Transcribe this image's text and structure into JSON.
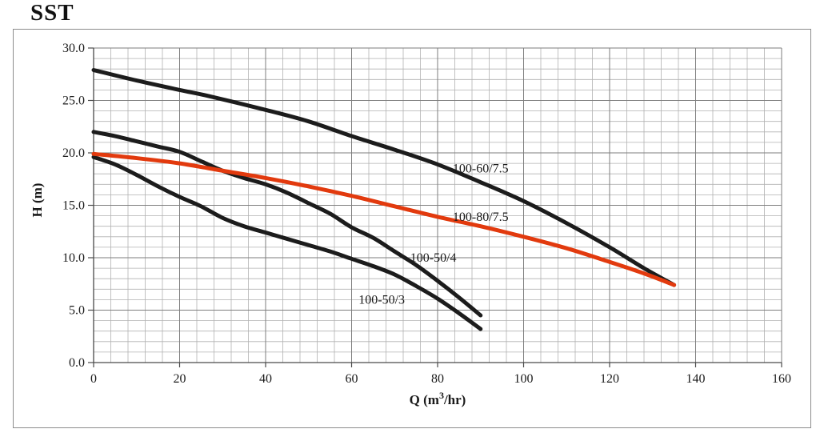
{
  "chart_data": {
    "type": "line",
    "title": "SST",
    "xlabel": "Q (m³/hr)",
    "xlabel_parts": {
      "pre": "Q (m",
      "sup": "3",
      "post": "/hr)"
    },
    "ylabel": "H (m)",
    "xlim": [
      0,
      160
    ],
    "ylim": [
      0,
      30
    ],
    "xticks": [
      0,
      20,
      40,
      60,
      80,
      100,
      120,
      140,
      160
    ],
    "yticks": [
      0,
      5,
      10,
      15,
      20,
      25,
      30
    ],
    "ytick_decimals": 1,
    "x_minor_step": 4,
    "y_minor_step": 1,
    "grid": true,
    "legend_position": "inline-curve-labels",
    "colors": {
      "curve_black": "#1c1c1c",
      "curve_red": "#e23a0e",
      "grid_minor": "#b2b2b2",
      "grid_major": "#7e7e7e",
      "axis": "#4a4a4a",
      "text": "#1a1a1a"
    },
    "series": [
      {
        "name": "100-60/7.5",
        "color_key": "curve_black",
        "label_at": [
          90,
          18.5
        ],
        "points": [
          [
            0,
            27.9
          ],
          [
            10,
            26.9
          ],
          [
            20,
            26.0
          ],
          [
            27,
            25.4
          ],
          [
            40,
            24.1
          ],
          [
            50,
            23.0
          ],
          [
            60,
            21.6
          ],
          [
            70,
            20.3
          ],
          [
            80,
            18.9
          ],
          [
            90,
            17.2
          ],
          [
            100,
            15.4
          ],
          [
            110,
            13.3
          ],
          [
            120,
            11.0
          ],
          [
            128,
            9.0
          ],
          [
            135,
            7.4
          ]
        ]
      },
      {
        "name": "100-50/4",
        "color_key": "curve_black",
        "label_at": [
          79,
          10.0
        ],
        "points": [
          [
            0,
            22.0
          ],
          [
            5,
            21.6
          ],
          [
            10,
            21.1
          ],
          [
            15,
            20.6
          ],
          [
            20,
            20.1
          ],
          [
            25,
            19.2
          ],
          [
            30,
            18.3
          ],
          [
            35,
            17.6
          ],
          [
            40,
            17.0
          ],
          [
            45,
            16.2
          ],
          [
            50,
            15.2
          ],
          [
            55,
            14.2
          ],
          [
            60,
            12.9
          ],
          [
            65,
            11.9
          ],
          [
            70,
            10.6
          ],
          [
            75,
            9.3
          ],
          [
            80,
            7.8
          ],
          [
            85,
            6.2
          ],
          [
            90,
            4.5
          ]
        ]
      },
      {
        "name": "100-50/3",
        "color_key": "curve_black",
        "label_at": [
          67,
          6.0
        ],
        "points": [
          [
            0,
            19.6
          ],
          [
            5,
            18.9
          ],
          [
            10,
            17.9
          ],
          [
            15,
            16.8
          ],
          [
            20,
            15.8
          ],
          [
            25,
            14.9
          ],
          [
            30,
            13.8
          ],
          [
            35,
            13.0
          ],
          [
            40,
            12.4
          ],
          [
            45,
            11.8
          ],
          [
            50,
            11.2
          ],
          [
            55,
            10.6
          ],
          [
            60,
            9.9
          ],
          [
            65,
            9.2
          ],
          [
            70,
            8.4
          ],
          [
            75,
            7.3
          ],
          [
            80,
            6.1
          ],
          [
            85,
            4.7
          ],
          [
            90,
            3.2
          ]
        ]
      },
      {
        "name": "100-80/7.5",
        "color_key": "curve_red",
        "label_at": [
          90,
          13.9
        ],
        "points": [
          [
            0,
            19.9
          ],
          [
            10,
            19.5
          ],
          [
            20,
            19.0
          ],
          [
            30,
            18.3
          ],
          [
            40,
            17.6
          ],
          [
            50,
            16.8
          ],
          [
            60,
            15.9
          ],
          [
            70,
            14.9
          ],
          [
            80,
            13.9
          ],
          [
            90,
            13.0
          ],
          [
            100,
            12.0
          ],
          [
            110,
            10.9
          ],
          [
            120,
            9.6
          ],
          [
            128,
            8.5
          ],
          [
            135,
            7.4
          ]
        ]
      }
    ]
  }
}
